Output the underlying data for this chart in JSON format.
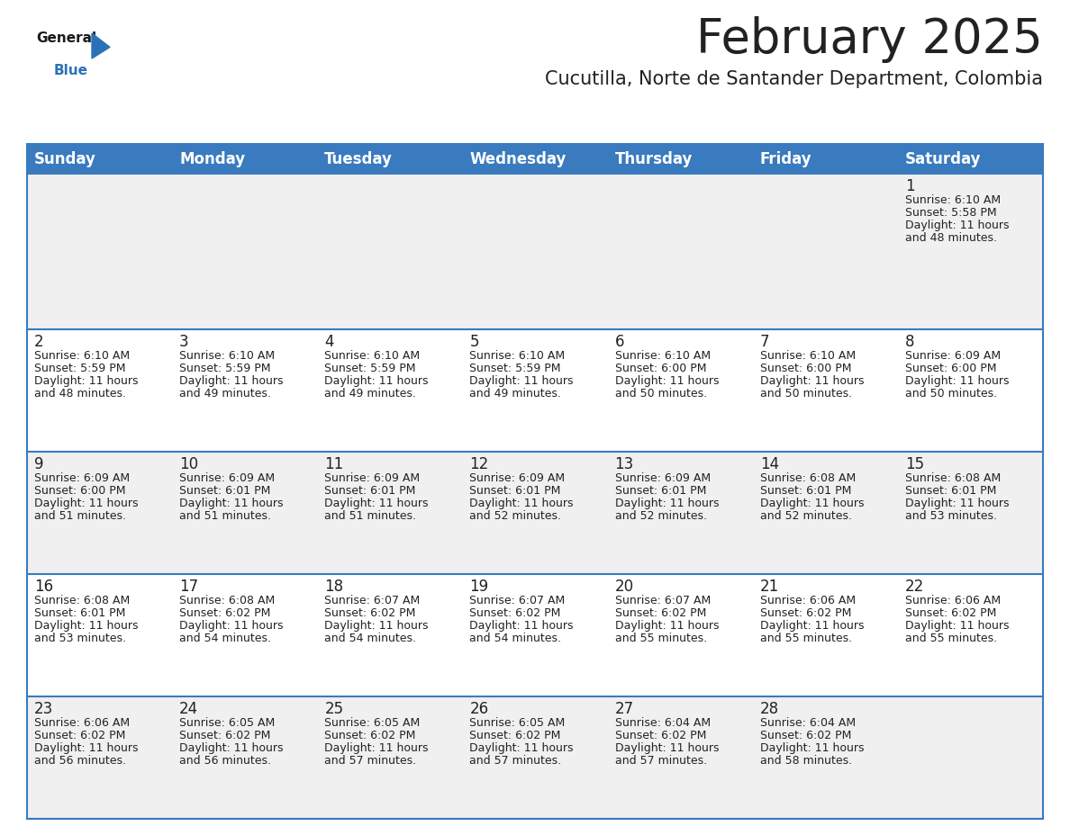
{
  "title": "February 2025",
  "subtitle": "Cucutilla, Norte de Santander Department, Colombia",
  "header_bg": "#3a7abf",
  "header_text": "#ffffff",
  "cell_bg_odd": "#f0f0f0",
  "cell_bg_even": "#ffffff",
  "day_headers": [
    "Sunday",
    "Monday",
    "Tuesday",
    "Wednesday",
    "Thursday",
    "Friday",
    "Saturday"
  ],
  "days": [
    {
      "day": 1,
      "col": 6,
      "row": 0,
      "sunrise": "6:10 AM",
      "sunset": "5:58 PM",
      "daylight": "11 hours and 48 minutes."
    },
    {
      "day": 2,
      "col": 0,
      "row": 1,
      "sunrise": "6:10 AM",
      "sunset": "5:59 PM",
      "daylight": "11 hours and 48 minutes."
    },
    {
      "day": 3,
      "col": 1,
      "row": 1,
      "sunrise": "6:10 AM",
      "sunset": "5:59 PM",
      "daylight": "11 hours and 49 minutes."
    },
    {
      "day": 4,
      "col": 2,
      "row": 1,
      "sunrise": "6:10 AM",
      "sunset": "5:59 PM",
      "daylight": "11 hours and 49 minutes."
    },
    {
      "day": 5,
      "col": 3,
      "row": 1,
      "sunrise": "6:10 AM",
      "sunset": "5:59 PM",
      "daylight": "11 hours and 49 minutes."
    },
    {
      "day": 6,
      "col": 4,
      "row": 1,
      "sunrise": "6:10 AM",
      "sunset": "6:00 PM",
      "daylight": "11 hours and 50 minutes."
    },
    {
      "day": 7,
      "col": 5,
      "row": 1,
      "sunrise": "6:10 AM",
      "sunset": "6:00 PM",
      "daylight": "11 hours and 50 minutes."
    },
    {
      "day": 8,
      "col": 6,
      "row": 1,
      "sunrise": "6:09 AM",
      "sunset": "6:00 PM",
      "daylight": "11 hours and 50 minutes."
    },
    {
      "day": 9,
      "col": 0,
      "row": 2,
      "sunrise": "6:09 AM",
      "sunset": "6:00 PM",
      "daylight": "11 hours and 51 minutes."
    },
    {
      "day": 10,
      "col": 1,
      "row": 2,
      "sunrise": "6:09 AM",
      "sunset": "6:01 PM",
      "daylight": "11 hours and 51 minutes."
    },
    {
      "day": 11,
      "col": 2,
      "row": 2,
      "sunrise": "6:09 AM",
      "sunset": "6:01 PM",
      "daylight": "11 hours and 51 minutes."
    },
    {
      "day": 12,
      "col": 3,
      "row": 2,
      "sunrise": "6:09 AM",
      "sunset": "6:01 PM",
      "daylight": "11 hours and 52 minutes."
    },
    {
      "day": 13,
      "col": 4,
      "row": 2,
      "sunrise": "6:09 AM",
      "sunset": "6:01 PM",
      "daylight": "11 hours and 52 minutes."
    },
    {
      "day": 14,
      "col": 5,
      "row": 2,
      "sunrise": "6:08 AM",
      "sunset": "6:01 PM",
      "daylight": "11 hours and 52 minutes."
    },
    {
      "day": 15,
      "col": 6,
      "row": 2,
      "sunrise": "6:08 AM",
      "sunset": "6:01 PM",
      "daylight": "11 hours and 53 minutes."
    },
    {
      "day": 16,
      "col": 0,
      "row": 3,
      "sunrise": "6:08 AM",
      "sunset": "6:01 PM",
      "daylight": "11 hours and 53 minutes."
    },
    {
      "day": 17,
      "col": 1,
      "row": 3,
      "sunrise": "6:08 AM",
      "sunset": "6:02 PM",
      "daylight": "11 hours and 54 minutes."
    },
    {
      "day": 18,
      "col": 2,
      "row": 3,
      "sunrise": "6:07 AM",
      "sunset": "6:02 PM",
      "daylight": "11 hours and 54 minutes."
    },
    {
      "day": 19,
      "col": 3,
      "row": 3,
      "sunrise": "6:07 AM",
      "sunset": "6:02 PM",
      "daylight": "11 hours and 54 minutes."
    },
    {
      "day": 20,
      "col": 4,
      "row": 3,
      "sunrise": "6:07 AM",
      "sunset": "6:02 PM",
      "daylight": "11 hours and 55 minutes."
    },
    {
      "day": 21,
      "col": 5,
      "row": 3,
      "sunrise": "6:06 AM",
      "sunset": "6:02 PM",
      "daylight": "11 hours and 55 minutes."
    },
    {
      "day": 22,
      "col": 6,
      "row": 3,
      "sunrise": "6:06 AM",
      "sunset": "6:02 PM",
      "daylight": "11 hours and 55 minutes."
    },
    {
      "day": 23,
      "col": 0,
      "row": 4,
      "sunrise": "6:06 AM",
      "sunset": "6:02 PM",
      "daylight": "11 hours and 56 minutes."
    },
    {
      "day": 24,
      "col": 1,
      "row": 4,
      "sunrise": "6:05 AM",
      "sunset": "6:02 PM",
      "daylight": "11 hours and 56 minutes."
    },
    {
      "day": 25,
      "col": 2,
      "row": 4,
      "sunrise": "6:05 AM",
      "sunset": "6:02 PM",
      "daylight": "11 hours and 57 minutes."
    },
    {
      "day": 26,
      "col": 3,
      "row": 4,
      "sunrise": "6:05 AM",
      "sunset": "6:02 PM",
      "daylight": "11 hours and 57 minutes."
    },
    {
      "day": 27,
      "col": 4,
      "row": 4,
      "sunrise": "6:04 AM",
      "sunset": "6:02 PM",
      "daylight": "11 hours and 57 minutes."
    },
    {
      "day": 28,
      "col": 5,
      "row": 4,
      "sunrise": "6:04 AM",
      "sunset": "6:02 PM",
      "daylight": "11 hours and 58 minutes."
    }
  ],
  "num_rows": 5,
  "num_cols": 7,
  "title_fontsize": 38,
  "subtitle_fontsize": 15,
  "header_fontsize": 12,
  "day_num_fontsize": 12,
  "info_fontsize": 9,
  "border_color": "#3a7abf",
  "line_color": "#3a7abf",
  "text_color": "#222222",
  "logo_general_color": "#1a1a1a",
  "logo_blue_color": "#2a72b8"
}
